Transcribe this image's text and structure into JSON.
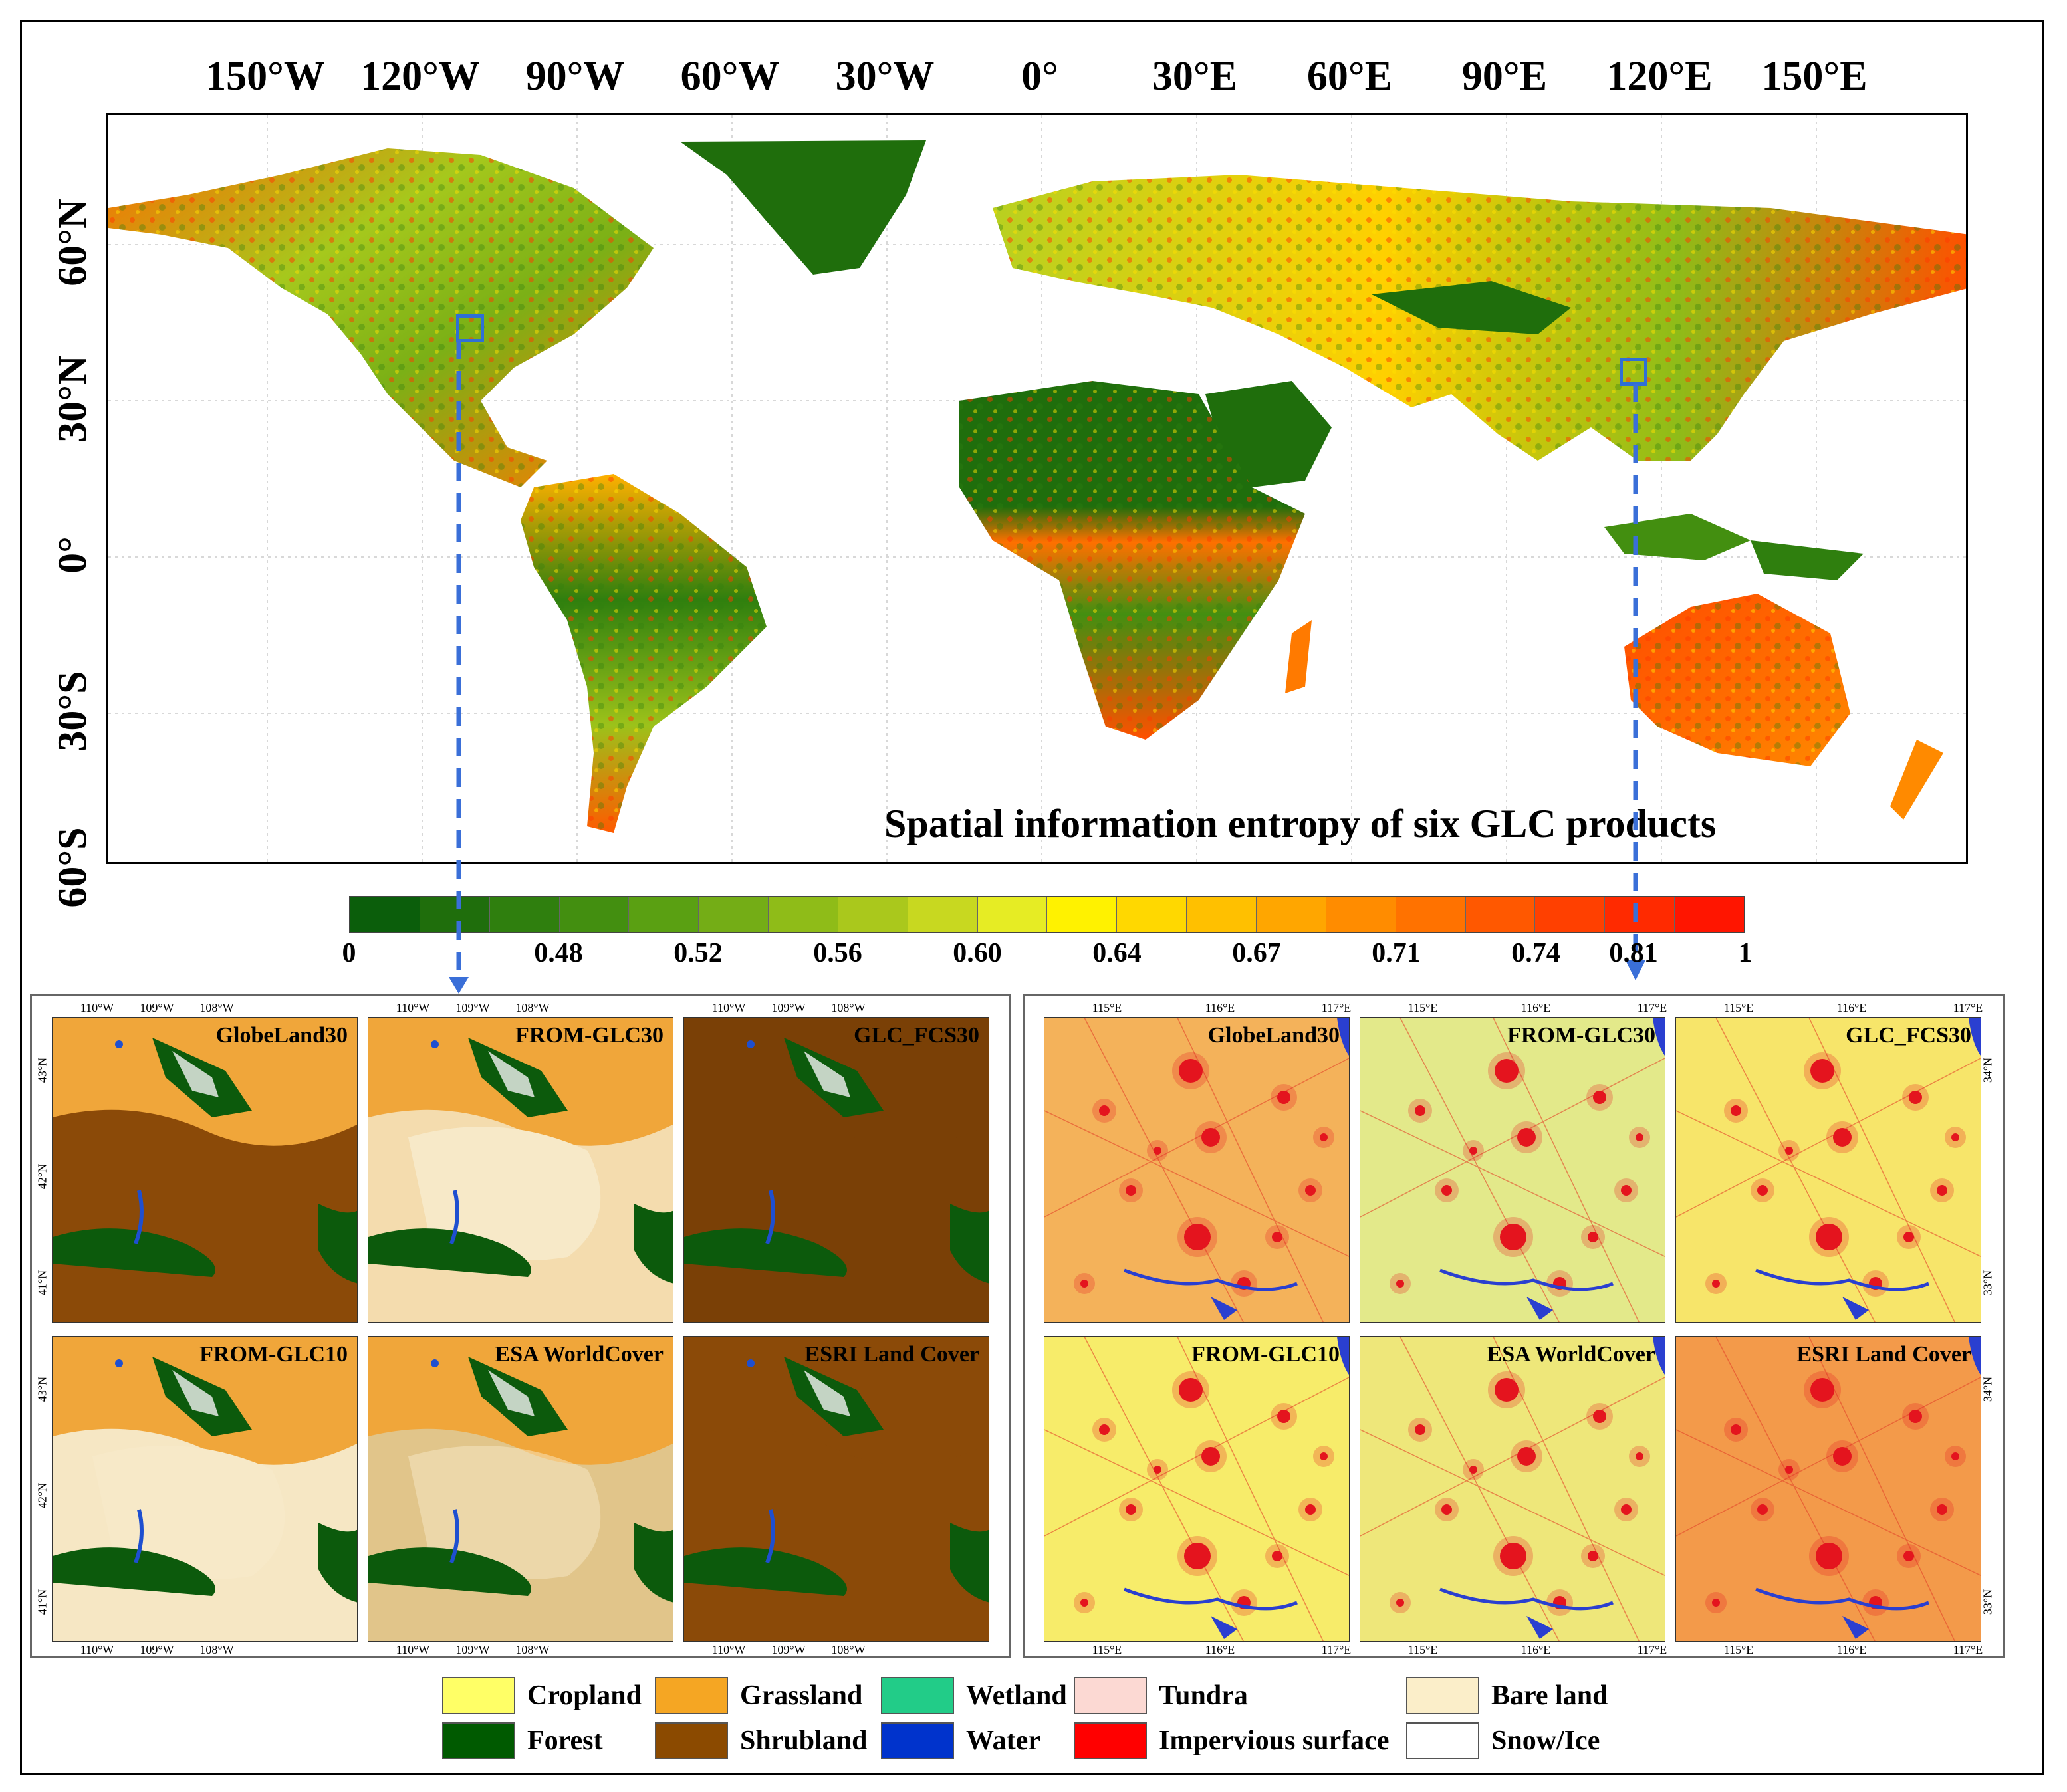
{
  "global_map": {
    "title": "Spatial information entropy of six GLC products",
    "lon_labels": [
      "150°W",
      "120°W",
      "90°W",
      "60°W",
      "30°W",
      "0°",
      "30°E",
      "60°E",
      "90°E",
      "120°E",
      "150°E"
    ],
    "lat_labels": [
      "60°N",
      "30°N",
      "0°",
      "30°S",
      "60°S"
    ],
    "colorbar": {
      "ticks": [
        "0",
        "0.48",
        "0.52",
        "0.56",
        "0.60",
        "0.64",
        "0.67",
        "0.71",
        "0.74",
        "0.81",
        "1"
      ],
      "colors": [
        "#0b5e0b",
        "#1f6e0c",
        "#2f7f0e",
        "#438f10",
        "#5aa012",
        "#74ad16",
        "#8fbc18",
        "#aac81c",
        "#c8d820",
        "#e6ec24",
        "#fff200",
        "#ffd800",
        "#ffc000",
        "#ffa600",
        "#ff8c00",
        "#ff7200",
        "#ff5800",
        "#ff4000",
        "#ff2a00",
        "#ff1500"
      ]
    },
    "regions": [
      {
        "name": "north-america-region",
        "lon": -105,
        "lat": 42
      },
      {
        "name": "china-region",
        "lon": 116,
        "lat": 33.5
      }
    ]
  },
  "left_panel": {
    "lon_ticks": [
      "110°W",
      "109°W",
      "108°W"
    ],
    "lat_ticks": [
      "43°N",
      "42°N",
      "41°N"
    ],
    "tiles": [
      {
        "label": "GlobeLand30",
        "base": "#8b4a08",
        "top": "#f0a63a",
        "bare": 0.0
      },
      {
        "label": "FROM-GLC30",
        "base": "#f4dcae",
        "top": "#f0a63a",
        "bare": 1.0
      },
      {
        "label": "GLC_FCS30",
        "base": "#7a4006",
        "top": "#7a4006",
        "bare": 0.0
      },
      {
        "label": "FROM-GLC10",
        "base": "#f6e7c4",
        "top": "#f0a63a",
        "bare": 1.0
      },
      {
        "label": "ESA WorldCover",
        "base": "#e1c58a",
        "top": "#f0a63a",
        "bare": 0.5
      },
      {
        "label": "ESRI Land Cover",
        "base": "#8b4a08",
        "top": "#8b4a08",
        "bare": 0.0
      }
    ]
  },
  "right_panel": {
    "lon_ticks": [
      "115°E",
      "116°E",
      "117°E"
    ],
    "lat_ticks": [
      "34°N",
      "33°N"
    ],
    "tiles": [
      {
        "label": "GlobeLand30",
        "base": "#f4b25a"
      },
      {
        "label": "FROM-GLC30",
        "base": "#e3e98a"
      },
      {
        "label": "GLC_FCS30",
        "base": "#f7e56a"
      },
      {
        "label": "FROM-GLC10",
        "base": "#f7ec6a"
      },
      {
        "label": "ESA WorldCover",
        "base": "#eee77a"
      },
      {
        "label": "ESRI Land Cover",
        "base": "#f39a4a"
      }
    ]
  },
  "legend": [
    {
      "label": "Cropland",
      "color": "#ffff66"
    },
    {
      "label": "Grassland",
      "color": "#f5a623"
    },
    {
      "label": "Wetland",
      "color": "#22cc88"
    },
    {
      "label": "Tundra",
      "color": "#fcd9d3"
    },
    {
      "label": "Bare land",
      "color": "#fbeec9"
    },
    {
      "label": "Forest",
      "color": "#005a00"
    },
    {
      "label": "Shrubland",
      "color": "#8b4a00"
    },
    {
      "label": "Water",
      "color": "#0033cc"
    },
    {
      "label": "Impervious surface",
      "color": "#ff0000"
    },
    {
      "label": "Snow/Ice",
      "color": "#ffffff"
    }
  ]
}
